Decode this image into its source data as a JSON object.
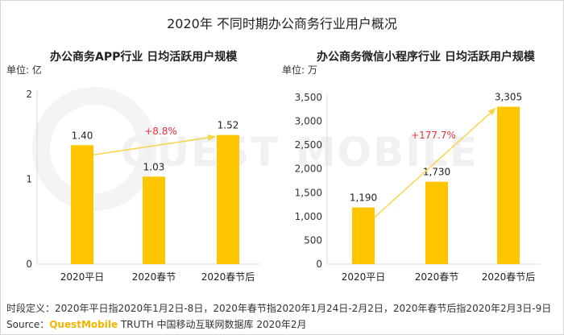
{
  "title": "2020年 不同时期办公商务行业用户概况",
  "chart_data": [
    {
      "type": "bar",
      "title": "办公商务APP行业 日均活跃用户规模",
      "unit": "单位: 亿",
      "categories": [
        "2020平日",
        "2020春节",
        "2020春节后"
      ],
      "values": [
        1.4,
        1.03,
        1.52
      ],
      "value_labels": [
        "1.40",
        "1.03",
        "1.52"
      ],
      "yticks": [
        "0",
        "1",
        "2"
      ],
      "ylim": [
        0,
        2
      ],
      "growth_label": "+8.8%",
      "bar_color": "#ffc600",
      "arrow_color": "#f7d54a",
      "growth_color": "#e8303a"
    },
    {
      "type": "bar",
      "title": "办公商务微信小程序行业 日均活跃用户规模",
      "unit": "单位: 万",
      "categories": [
        "2020平日",
        "2020春节",
        "2020春节后"
      ],
      "values": [
        1190,
        1730,
        3305
      ],
      "value_labels": [
        "1,190",
        "1,730",
        "3,305"
      ],
      "yticks": [
        "0",
        "500",
        "1,000",
        "1,500",
        "2,000",
        "2,500",
        "3,000",
        "3,500"
      ],
      "ylim": [
        0,
        3500
      ],
      "growth_label": "+177.7%",
      "bar_color": "#ffc600",
      "arrow_color": "#f7d54a",
      "growth_color": "#e8303a"
    }
  ],
  "footnote": {
    "definition": "时段定义：2020年平日指2020年1月2日-8日，2020年春节指2020年1月24日-2月2日，2020年春节后指2020年2月3日-9日",
    "source_prefix": "Source：",
    "source_brand": "QuestMobile",
    "source_rest": " TRUTH 中国移动互联网数据库 2020年2月"
  },
  "watermark": "QUEST MOBILE"
}
